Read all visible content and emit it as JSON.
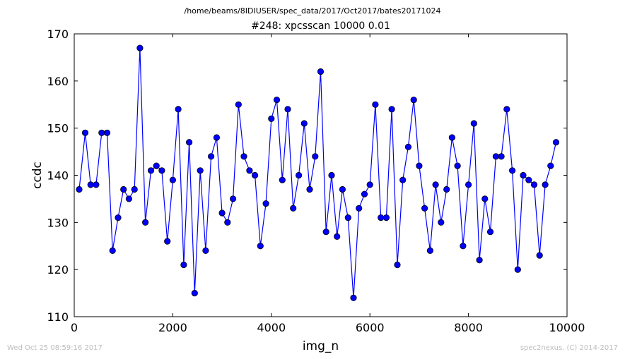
{
  "suptitle": "/home/beams/8IDIUSER/spec_data/2017/Oct2017/bates20171024",
  "footer": {
    "left": "Wed Oct 25 08:59:16 2017",
    "right": "spec2nexus, (C) 2014-2017"
  },
  "chart_data": {
    "type": "line",
    "title": "#248: xpcsscan 10000 0.01",
    "xlabel": "img_n",
    "ylabel": "ccdc",
    "xlim": [
      0,
      10000
    ],
    "ylim": [
      110,
      170
    ],
    "xticks": [
      0,
      2000,
      4000,
      6000,
      8000,
      10000
    ],
    "yticks": [
      110,
      120,
      130,
      140,
      150,
      160,
      170
    ],
    "grid": false,
    "legend": "none",
    "series": [
      {
        "color": "#0000ff",
        "marker": "circle",
        "points": [
          [
            100,
            137
          ],
          [
            222,
            149
          ],
          [
            333,
            138
          ],
          [
            444,
            138
          ],
          [
            556,
            149
          ],
          [
            667,
            149
          ],
          [
            778,
            124
          ],
          [
            889,
            131
          ],
          [
            1000,
            137
          ],
          [
            1111,
            135
          ],
          [
            1222,
            137
          ],
          [
            1333,
            167
          ],
          [
            1444,
            130
          ],
          [
            1556,
            141
          ],
          [
            1667,
            142
          ],
          [
            1778,
            141
          ],
          [
            1889,
            126
          ],
          [
            2000,
            139
          ],
          [
            2111,
            154
          ],
          [
            2222,
            121
          ],
          [
            2333,
            147
          ],
          [
            2444,
            115
          ],
          [
            2556,
            141
          ],
          [
            2667,
            124
          ],
          [
            2778,
            144
          ],
          [
            2889,
            148
          ],
          [
            3000,
            132
          ],
          [
            3111,
            130
          ],
          [
            3222,
            135
          ],
          [
            3333,
            155
          ],
          [
            3444,
            144
          ],
          [
            3556,
            141
          ],
          [
            3667,
            140
          ],
          [
            3778,
            125
          ],
          [
            3889,
            134
          ],
          [
            4000,
            152
          ],
          [
            4111,
            156
          ],
          [
            4222,
            139
          ],
          [
            4333,
            154
          ],
          [
            4444,
            133
          ],
          [
            4556,
            140
          ],
          [
            4667,
            151
          ],
          [
            4778,
            137
          ],
          [
            4889,
            144
          ],
          [
            5000,
            162
          ],
          [
            5111,
            128
          ],
          [
            5222,
            140
          ],
          [
            5333,
            127
          ],
          [
            5444,
            137
          ],
          [
            5556,
            131
          ],
          [
            5667,
            114
          ],
          [
            5778,
            133
          ],
          [
            5889,
            136
          ],
          [
            6000,
            138
          ],
          [
            6111,
            155
          ],
          [
            6222,
            131
          ],
          [
            6333,
            131
          ],
          [
            6444,
            154
          ],
          [
            6556,
            121
          ],
          [
            6667,
            139
          ],
          [
            6778,
            146
          ],
          [
            6889,
            156
          ],
          [
            7000,
            142
          ],
          [
            7111,
            133
          ],
          [
            7222,
            124
          ],
          [
            7333,
            138
          ],
          [
            7444,
            130
          ],
          [
            7556,
            137
          ],
          [
            7667,
            148
          ],
          [
            7778,
            142
          ],
          [
            7889,
            125
          ],
          [
            8000,
            138
          ],
          [
            8111,
            151
          ],
          [
            8222,
            122
          ],
          [
            8333,
            135
          ],
          [
            8444,
            128
          ],
          [
            8556,
            144
          ],
          [
            8667,
            144
          ],
          [
            8778,
            154
          ],
          [
            8889,
            141
          ],
          [
            9000,
            120
          ],
          [
            9111,
            140
          ],
          [
            9222,
            139
          ],
          [
            9333,
            138
          ],
          [
            9444,
            123
          ],
          [
            9556,
            138
          ],
          [
            9667,
            142
          ],
          [
            9778,
            147
          ]
        ]
      }
    ]
  }
}
